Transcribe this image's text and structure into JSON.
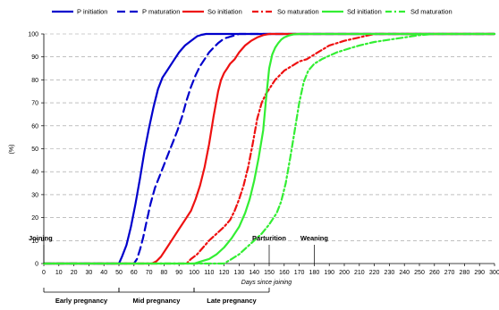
{
  "chart_data": {
    "type": "line",
    "xlabel": "Days since joining",
    "ylabel": "(%)",
    "xlim": [
      0,
      300
    ],
    "ylim": [
      0,
      100
    ],
    "x_ticks": [
      0,
      10,
      20,
      30,
      40,
      50,
      60,
      70,
      80,
      90,
      100,
      110,
      120,
      130,
      140,
      150,
      160,
      170,
      180,
      190,
      200,
      210,
      220,
      230,
      240,
      250,
      260,
      270,
      280,
      290,
      300
    ],
    "x_tick_labels": [
      "0",
      "10",
      "20",
      "30",
      "40",
      "50",
      "60",
      "70",
      "80",
      "90",
      "100",
      "110",
      "120",
      "130",
      "140",
      "150",
      "160",
      "170",
      "180",
      "190",
      "200",
      "210",
      "220",
      "230",
      "240",
      "250",
      "260",
      "270",
      "280",
      "290",
      "300"
    ],
    "y_ticks": [
      0,
      10,
      20,
      30,
      40,
      50,
      60,
      70,
      80,
      90,
      100
    ],
    "y_tick_labels": [
      "0",
      "10",
      "20",
      "30",
      "40",
      "50",
      "60",
      "70",
      "80",
      "90",
      "100"
    ],
    "grid": "horizontal dashed",
    "legend_position": "top",
    "series": [
      {
        "name": "P initiation",
        "color": "#0000cc",
        "dash": "solid",
        "x": [
          0,
          50,
          52,
          55,
          58,
          61,
          64,
          67,
          70,
          73,
          76,
          79,
          82,
          86,
          90,
          94,
          98,
          102,
          105,
          108,
          110,
          115,
          300
        ],
        "y": [
          0,
          0,
          3,
          8,
          16,
          26,
          37,
          49,
          59,
          68,
          76,
          81,
          84,
          88,
          92,
          95,
          97,
          99,
          99.6,
          100,
          100,
          100,
          100
        ]
      },
      {
        "name": "P maturation",
        "color": "#0000cc",
        "dash": "long-dash",
        "x": [
          0,
          60,
          62,
          64,
          66,
          68,
          71,
          74,
          77,
          80,
          83,
          86,
          89,
          92,
          95,
          98,
          101,
          104,
          107,
          110,
          113,
          116,
          120,
          125,
          130,
          135,
          300
        ],
        "y": [
          0,
          0,
          2,
          6,
          11,
          17,
          26,
          33,
          38,
          43,
          48,
          53,
          58,
          64,
          71,
          77,
          82,
          86,
          89,
          92,
          94,
          96,
          98,
          99,
          100,
          100,
          100
        ]
      },
      {
        "name": "So initiation",
        "color": "#ee1111",
        "dash": "solid",
        "x": [
          0,
          72,
          75,
          78,
          82,
          86,
          90,
          94,
          98,
          101,
          104,
          107,
          110,
          113,
          116,
          118,
          120,
          122,
          124,
          127,
          130,
          134,
          138,
          142,
          146,
          150,
          300
        ],
        "y": [
          0,
          0,
          1,
          3,
          7,
          11,
          15,
          19,
          23,
          28,
          34,
          42,
          52,
          64,
          75,
          80,
          83,
          85,
          87,
          89,
          92,
          95,
          97,
          98.5,
          99.5,
          100,
          100
        ]
      },
      {
        "name": "So maturation",
        "color": "#ee1111",
        "dash": "dash-dot",
        "x": [
          0,
          95,
          98,
          102,
          106,
          110,
          115,
          120,
          124,
          127,
          130,
          133,
          136,
          139,
          142,
          145,
          148,
          151,
          154,
          157,
          160,
          165,
          170,
          175,
          180,
          185,
          190,
          200,
          210,
          220,
          300
        ],
        "y": [
          0,
          0,
          2,
          4,
          7,
          10,
          13,
          16,
          19,
          23,
          28,
          34,
          42,
          52,
          63,
          70,
          74,
          77,
          80,
          82,
          84,
          86,
          88,
          89,
          91,
          93,
          95,
          97,
          98.5,
          100,
          100
        ]
      },
      {
        "name": "Sd initiation",
        "color": "#33ee33",
        "dash": "solid",
        "x": [
          0,
          100,
          105,
          110,
          115,
          120,
          125,
          130,
          134,
          137,
          140,
          143,
          146,
          148,
          150,
          152,
          154,
          156,
          158,
          160,
          163,
          166,
          170,
          300
        ],
        "y": [
          0,
          0,
          1,
          2,
          4,
          7,
          11,
          16,
          22,
          28,
          36,
          46,
          58,
          72,
          85,
          91,
          94,
          96,
          97.5,
          98.5,
          99.3,
          99.8,
          100,
          100
        ]
      },
      {
        "name": "Sd maturation",
        "color": "#33ee33",
        "dash": "dash-dot",
        "x": [
          0,
          120,
          125,
          130,
          135,
          140,
          145,
          150,
          155,
          158,
          161,
          164,
          167,
          170,
          173,
          176,
          180,
          185,
          190,
          195,
          200,
          205,
          210,
          220,
          230,
          240,
          250,
          260,
          300
        ],
        "y": [
          0,
          0,
          2,
          4,
          7,
          10,
          13,
          17,
          22,
          27,
          35,
          46,
          58,
          70,
          79,
          84,
          87,
          89,
          90.5,
          92,
          93,
          94,
          95,
          96.5,
          97.5,
          98.5,
          99.5,
          100,
          100
        ]
      }
    ],
    "annotations": [
      {
        "text": "Joining",
        "x": 0
      },
      {
        "text": "Parturition",
        "x": 150
      },
      {
        "text": "Weaning",
        "x": 180
      }
    ],
    "phases": [
      {
        "label": "Early pregnancy",
        "from": 0,
        "to": 50
      },
      {
        "label": "Mid pregnancy",
        "from": 50,
        "to": 100
      },
      {
        "label": "Late pregnancy",
        "from": 100,
        "to": 150
      }
    ]
  }
}
